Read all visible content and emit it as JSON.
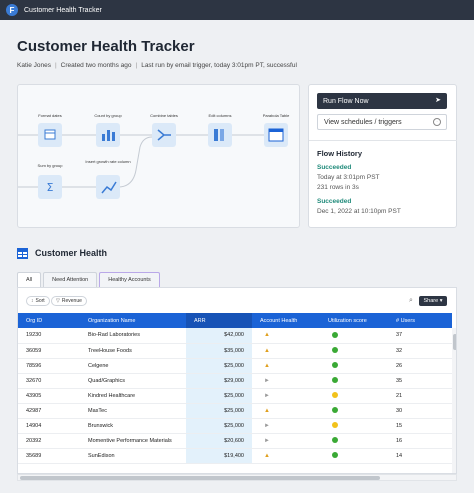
{
  "titlebar": {
    "app_name": "Customer Health Tracker",
    "logo_letter": "F"
  },
  "page": {
    "title": "Customer Health Tracker",
    "author": "Katie Jones",
    "created": "Created two months ago",
    "last_run": "Last run by email trigger, today 3:01pm PT, successful"
  },
  "flow": {
    "nodes": [
      {
        "label": "Format dates",
        "icon": "calendar-icon"
      },
      {
        "label": "Count by group",
        "icon": "bar-chart-icon"
      },
      {
        "label": "Combine tables",
        "icon": "merge-icon"
      },
      {
        "label": "Edit columns",
        "icon": "columns-icon"
      },
      {
        "label": "Parabola Table",
        "icon": "table-icon"
      },
      {
        "label": "Sum by group",
        "icon": "sum-icon"
      },
      {
        "label": "Insert growth rate column",
        "icon": "growth-chart-icon"
      }
    ]
  },
  "actions": {
    "run_label": "Run Flow Now",
    "schedule_label": "View schedules / triggers"
  },
  "history": {
    "title": "Flow History",
    "entries": [
      {
        "status": "Succeeded",
        "time": "Today at 3:01pm PST",
        "detail": "231 rows in 3s"
      },
      {
        "status": "Succeeded",
        "time": "Dec 1, 2022 at 10:10pm PST",
        "detail": ""
      }
    ]
  },
  "section": {
    "title": "Customer Health"
  },
  "tabs": [
    "All",
    "Need Attention",
    "Healthy Accounts"
  ],
  "toolbar": {
    "sort_label": "Sort",
    "filter_label": "Revenue",
    "share_label": "Share"
  },
  "table": {
    "headers": [
      "Org ID",
      "Organization Name",
      "ARR",
      "Account Health",
      "Utilization score",
      "# Users"
    ],
    "rows": [
      {
        "id": "19230",
        "name": "Bio-Rad Laboratories",
        "arr": "$42,000",
        "health": "up",
        "util": "green",
        "users": "37"
      },
      {
        "id": "36059",
        "name": "TreeHouse Foods",
        "arr": "$35,000",
        "health": "up",
        "util": "green",
        "users": "32"
      },
      {
        "id": "78596",
        "name": "Celgene",
        "arr": "$25,000",
        "health": "up",
        "util": "green",
        "users": "26"
      },
      {
        "id": "32670",
        "name": "Quad/Graphics",
        "arr": "$29,000",
        "health": "neutral",
        "util": "green",
        "users": "35"
      },
      {
        "id": "43905",
        "name": "Kindred Healthcare",
        "arr": "$25,000",
        "health": "neutral",
        "util": "yellow",
        "users": "21"
      },
      {
        "id": "42987",
        "name": "MasTec",
        "arr": "$25,000",
        "health": "up",
        "util": "green",
        "users": "30"
      },
      {
        "id": "14904",
        "name": "Brunswick",
        "arr": "$25,000",
        "health": "neutral",
        "util": "yellow",
        "users": "15"
      },
      {
        "id": "20392",
        "name": "Momentive Performance Materials",
        "arr": "$20,600",
        "health": "neutral",
        "util": "green",
        "users": "16"
      },
      {
        "id": "35689",
        "name": "SunEdison",
        "arr": "$19,400",
        "health": "up",
        "util": "green",
        "users": "14"
      }
    ]
  },
  "colors": {
    "green": "#3aa935",
    "yellow": "#f2c21b",
    "header": "#1b63d6",
    "dark": "#2d3543",
    "success": "#1f8a7a"
  }
}
